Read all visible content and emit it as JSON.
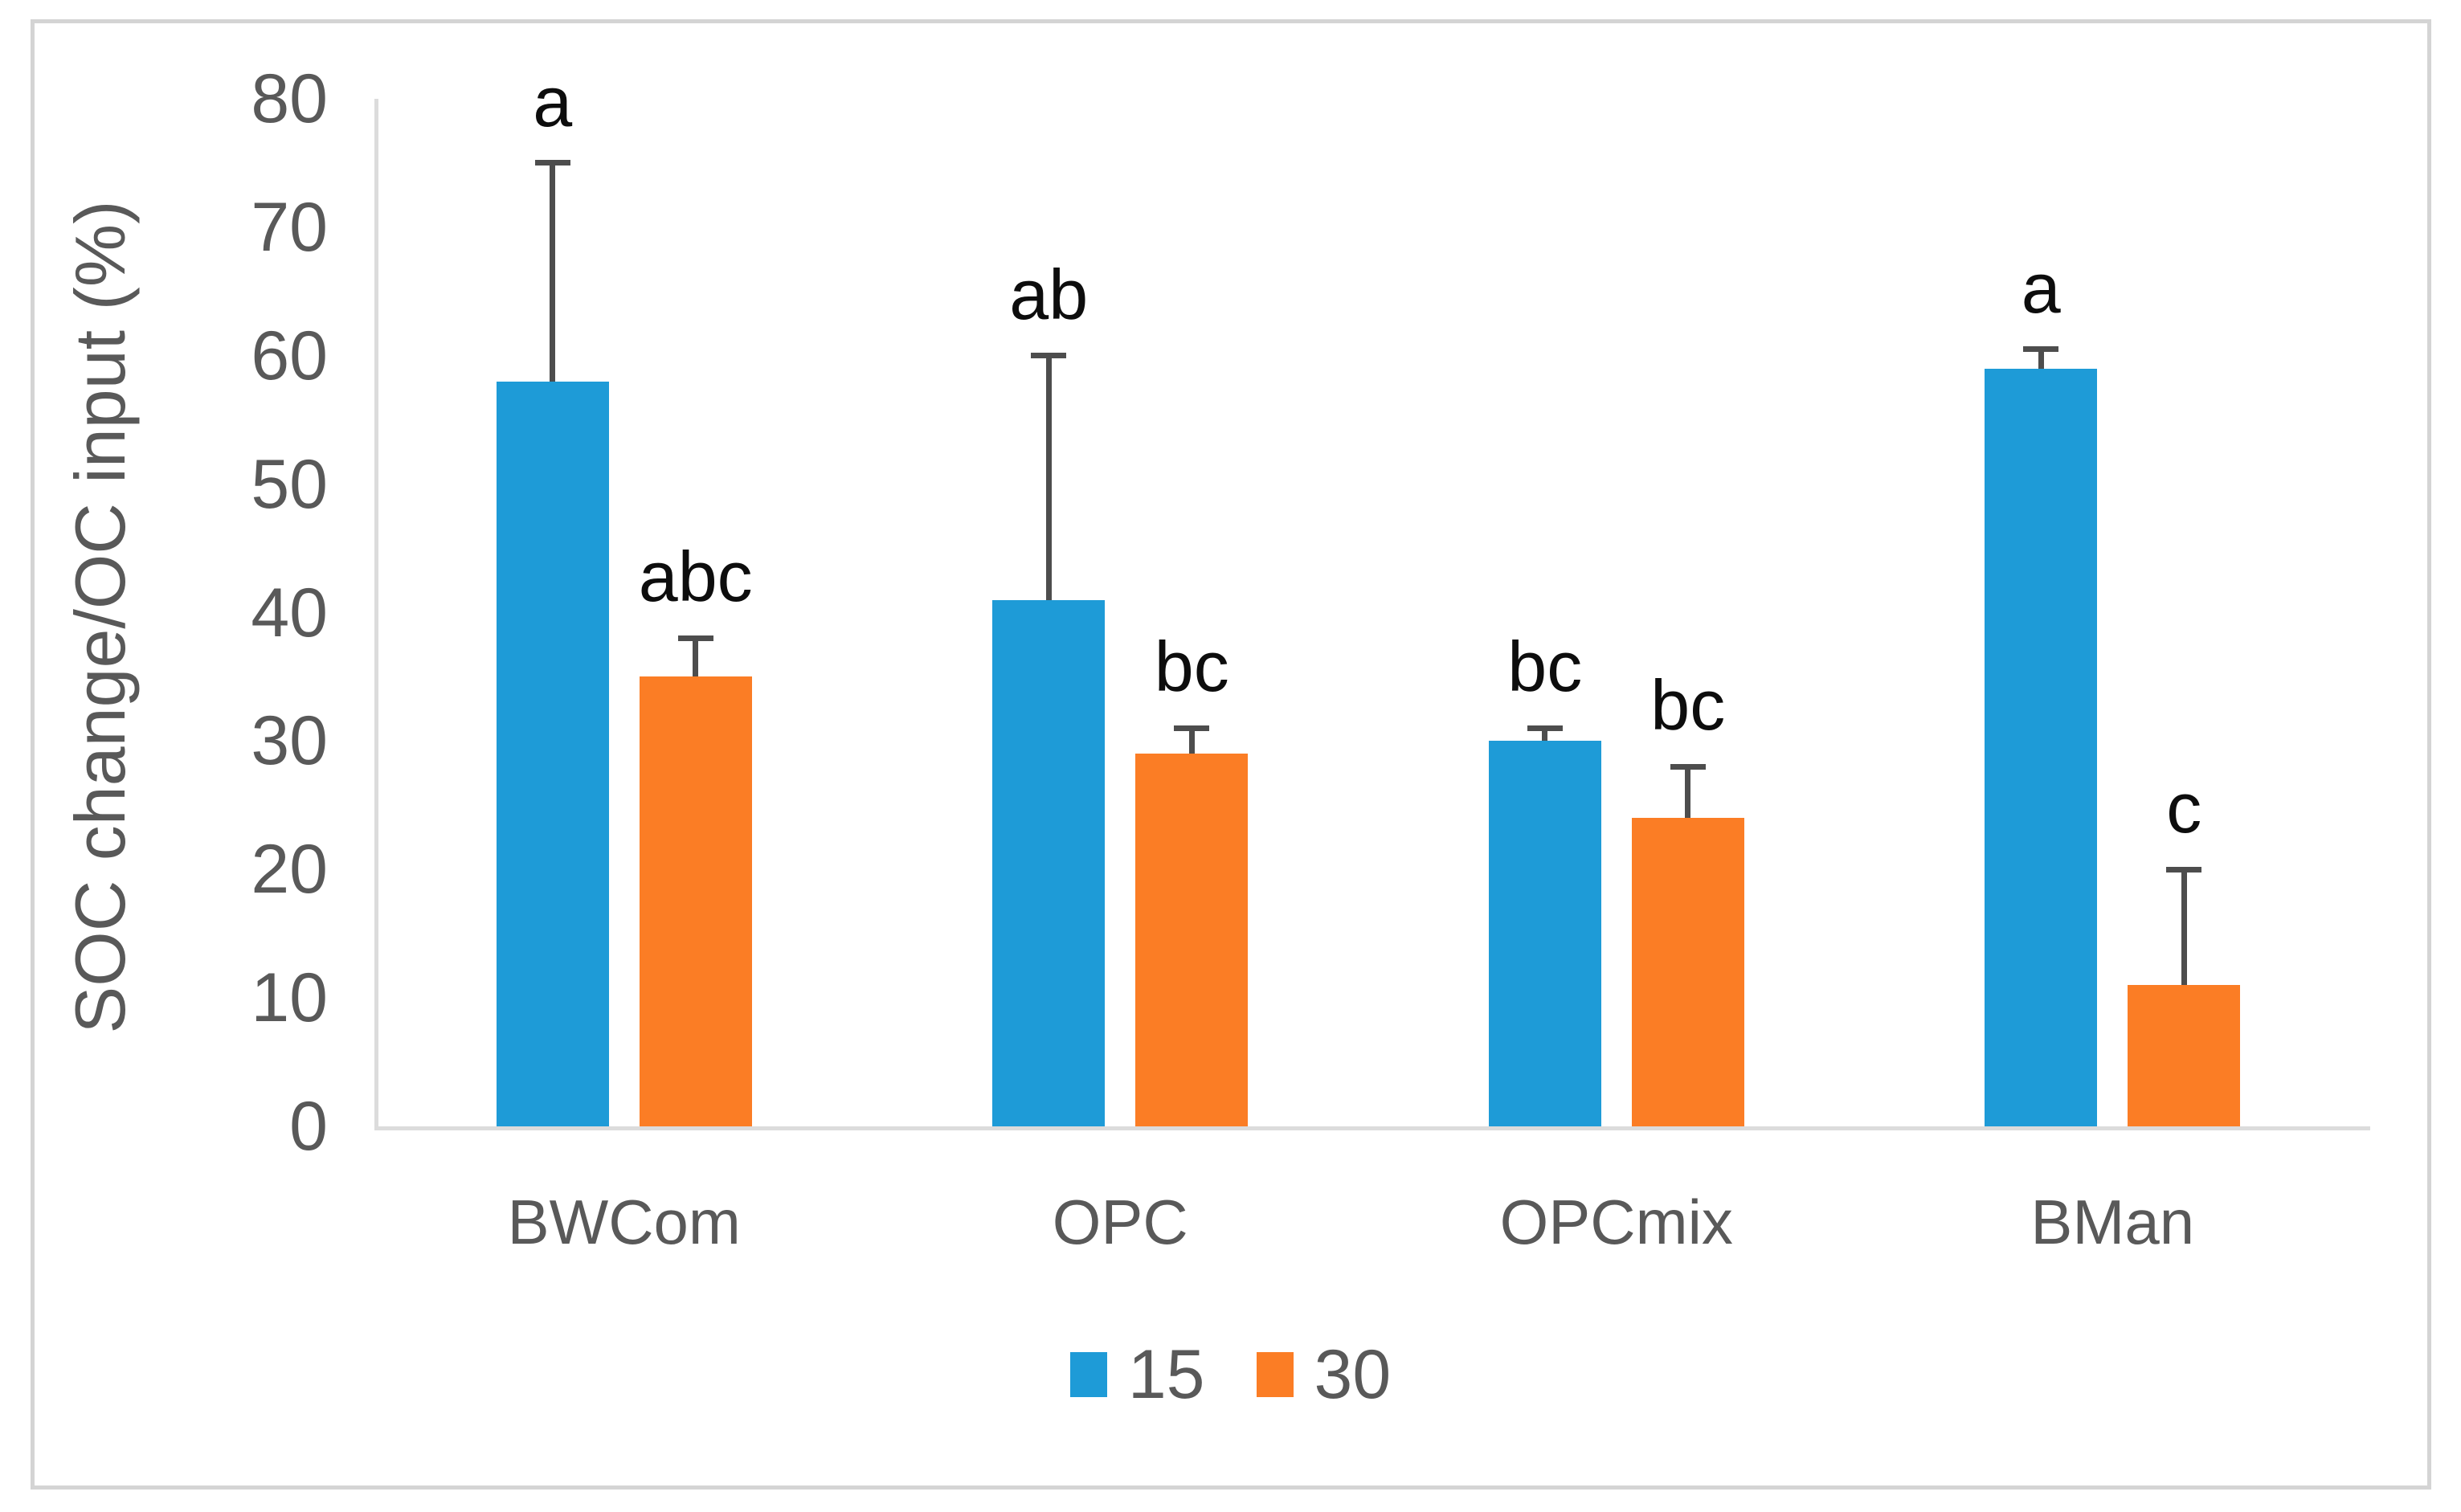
{
  "chart_data": {
    "type": "bar",
    "title": "",
    "ylabel": "SOC change/OC input (%)",
    "xlabel": "",
    "categories": [
      "BWCom",
      "OPC",
      "OPCmix",
      "BMan"
    ],
    "series": [
      {
        "name": "15",
        "color": "#1e9bd7",
        "values": [
          58,
          41,
          30,
          59
        ],
        "error_plus": [
          17,
          19,
          1,
          1.5
        ],
        "sig_letters": [
          "a",
          "ab",
          "bc",
          "a"
        ]
      },
      {
        "name": "30",
        "color": "#fb7d25",
        "values": [
          35,
          29,
          24,
          11
        ],
        "error_plus": [
          3,
          2,
          4,
          9
        ],
        "sig_letters": [
          "abc",
          "bc",
          "bc",
          "c"
        ]
      }
    ],
    "ylim": [
      0,
      80
    ],
    "yticks": [
      0,
      10,
      20,
      30,
      40,
      50,
      60,
      70,
      80
    ],
    "grid": false,
    "legend_position": "bottom",
    "colors": {
      "axis_line": "#dcdcdc",
      "axis_text": "#595959",
      "error_bar": "#4d4d4d",
      "sig_letter": "#0d0d0d",
      "frame_border": "#d4d4d4",
      "background": "#ffffff"
    }
  }
}
